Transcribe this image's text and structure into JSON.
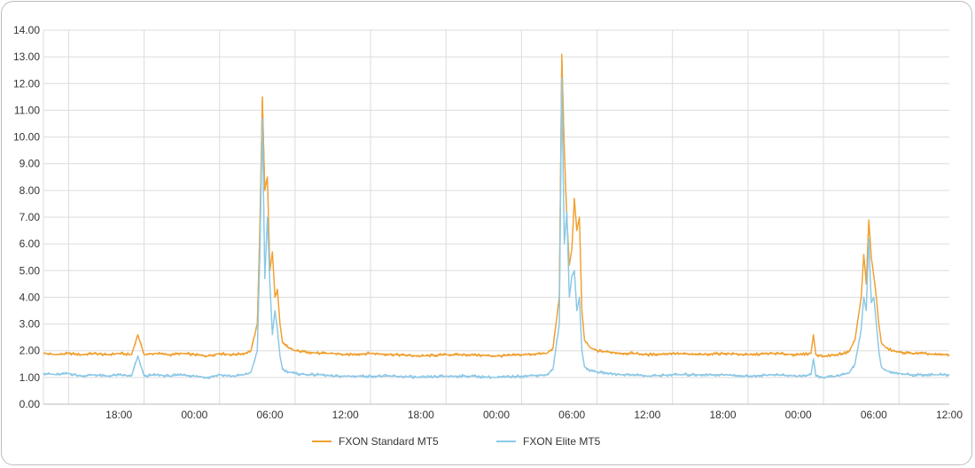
{
  "chart_data": {
    "type": "line",
    "title": "",
    "xlabel": "",
    "ylabel": "",
    "ylim": [
      0,
      14
    ],
    "y_ticks": [
      "0.00",
      "1.00",
      "2.00",
      "3.00",
      "4.00",
      "5.00",
      "6.00",
      "7.00",
      "8.00",
      "9.00",
      "10.00",
      "11.00",
      "12.00",
      "13.00",
      "14.00"
    ],
    "x_tick_labels": [
      "18:00",
      "00:00",
      "06:00",
      "12:00",
      "18:00",
      "00:00",
      "06:00",
      "12:00",
      "18:00",
      "00:00",
      "06:00",
      "12:00"
    ],
    "x_tick_hours": [
      6,
      12,
      18,
      24,
      30,
      36,
      42,
      48,
      54,
      60,
      66,
      72
    ],
    "x_range_hours": [
      0,
      72
    ],
    "x_gridline_hours": [
      0,
      2,
      8,
      14,
      20,
      26,
      32,
      38,
      44,
      50,
      56,
      62,
      68
    ],
    "grid": true,
    "legend_position": "bottom",
    "series": [
      {
        "name": "FXON Standard MT5",
        "color": "#f0a030",
        "x": [
          0,
          1,
          2,
          3,
          4,
          5,
          6,
          7,
          7.5,
          8,
          9,
          10,
          11,
          12,
          13,
          14,
          15,
          16,
          16.5,
          17,
          17.2,
          17.4,
          17.6,
          17.8,
          18.0,
          18.2,
          18.4,
          18.6,
          18.8,
          19.0,
          19.5,
          20,
          21,
          22,
          23,
          24,
          26,
          28,
          30,
          32,
          34,
          36,
          38,
          40,
          40.5,
          41,
          41.2,
          41.4,
          41.6,
          41.8,
          42.0,
          42.2,
          42.4,
          42.6,
          42.8,
          43.0,
          43.5,
          44,
          45,
          46,
          47,
          48,
          50,
          52,
          54,
          56,
          58,
          60,
          61,
          61.2,
          61.4,
          62,
          63,
          64,
          64.5,
          65,
          65.2,
          65.4,
          65.6,
          65.8,
          66.0,
          66.2,
          66.4,
          66.6,
          66.8,
          67.0,
          67.5,
          68,
          69,
          70,
          71,
          72
        ],
        "values": [
          1.9,
          1.85,
          1.9,
          1.85,
          1.9,
          1.85,
          1.9,
          1.85,
          2.6,
          1.85,
          1.9,
          1.85,
          1.9,
          1.85,
          1.8,
          1.9,
          1.85,
          1.9,
          2.0,
          3.0,
          6.5,
          11.5,
          8.0,
          8.5,
          5.0,
          5.7,
          4.0,
          4.3,
          3.0,
          2.3,
          2.1,
          2.0,
          1.95,
          1.9,
          1.9,
          1.85,
          1.9,
          1.85,
          1.8,
          1.85,
          1.85,
          1.8,
          1.85,
          1.9,
          2.1,
          4.0,
          13.1,
          9.5,
          7.0,
          5.2,
          5.8,
          7.7,
          6.5,
          7.0,
          3.5,
          2.4,
          2.1,
          2.0,
          1.95,
          1.9,
          1.9,
          1.85,
          1.9,
          1.85,
          1.9,
          1.85,
          1.9,
          1.85,
          1.9,
          2.6,
          1.85,
          1.8,
          1.85,
          1.95,
          2.4,
          4.0,
          5.6,
          4.5,
          6.9,
          5.5,
          4.8,
          4.0,
          3.0,
          2.3,
          2.2,
          2.1,
          2.0,
          1.95,
          1.9,
          1.9,
          1.85,
          1.85
        ]
      },
      {
        "name": "FXON Elite MT5",
        "color": "#8cc8e6",
        "x": [
          0,
          1,
          2,
          3,
          4,
          5,
          6,
          7,
          7.5,
          8,
          9,
          10,
          11,
          12,
          13,
          14,
          15,
          16,
          16.5,
          17,
          17.2,
          17.4,
          17.6,
          17.8,
          18.0,
          18.2,
          18.4,
          18.6,
          18.8,
          19.0,
          19.5,
          20,
          21,
          22,
          23,
          24,
          26,
          28,
          30,
          32,
          34,
          36,
          38,
          40,
          40.5,
          41,
          41.2,
          41.4,
          41.6,
          41.8,
          42.0,
          42.2,
          42.4,
          42.6,
          42.8,
          43.0,
          43.5,
          44,
          45,
          46,
          47,
          48,
          50,
          52,
          54,
          56,
          58,
          60,
          61,
          61.2,
          61.4,
          62,
          63,
          64,
          64.5,
          65,
          65.2,
          65.4,
          65.6,
          65.8,
          66.0,
          66.2,
          66.4,
          66.6,
          66.8,
          67.0,
          67.5,
          68,
          69,
          70,
          71,
          72
        ],
        "values": [
          1.15,
          1.1,
          1.15,
          1.05,
          1.1,
          1.05,
          1.1,
          1.05,
          1.8,
          1.05,
          1.1,
          1.05,
          1.1,
          1.05,
          1.0,
          1.1,
          1.05,
          1.1,
          1.2,
          2.0,
          5.5,
          10.7,
          4.7,
          7.0,
          4.5,
          2.6,
          3.5,
          2.8,
          1.8,
          1.3,
          1.2,
          1.15,
          1.1,
          1.1,
          1.05,
          1.05,
          1.05,
          1.05,
          1.0,
          1.05,
          1.05,
          1.0,
          1.05,
          1.1,
          1.3,
          3.0,
          12.2,
          6.0,
          7.2,
          4.0,
          4.8,
          5.0,
          3.5,
          4.0,
          2.0,
          1.4,
          1.25,
          1.2,
          1.15,
          1.1,
          1.1,
          1.05,
          1.1,
          1.1,
          1.1,
          1.05,
          1.1,
          1.05,
          1.1,
          1.7,
          1.05,
          1.0,
          1.05,
          1.15,
          1.5,
          2.8,
          4.0,
          3.5,
          6.2,
          3.8,
          4.0,
          3.0,
          2.0,
          1.4,
          1.3,
          1.25,
          1.2,
          1.15,
          1.1,
          1.1,
          1.1,
          1.1
        ]
      }
    ]
  }
}
